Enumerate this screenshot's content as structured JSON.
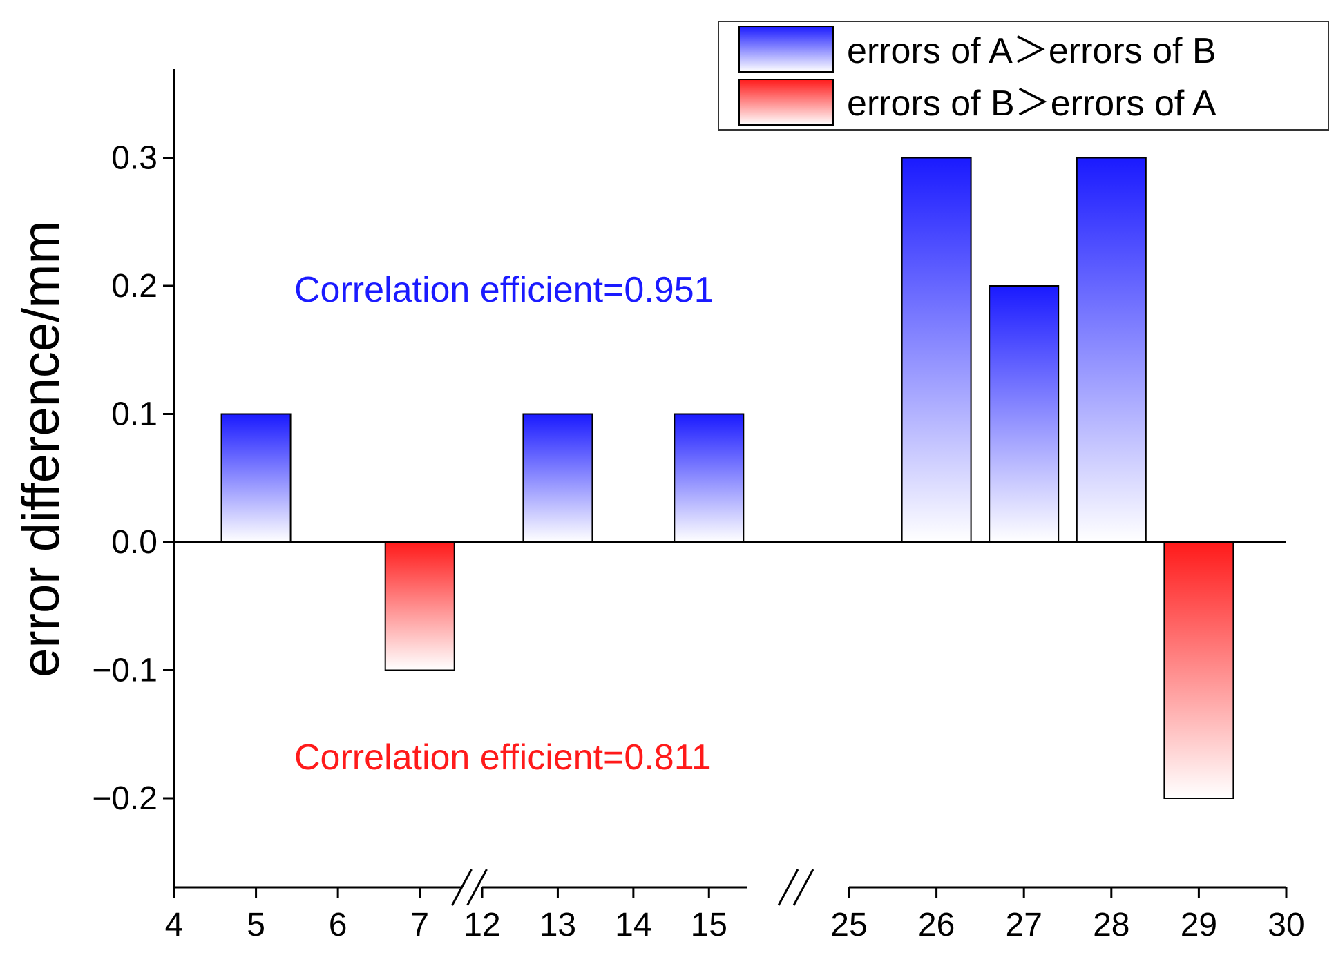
{
  "chart_data": {
    "type": "bar",
    "title": "",
    "xlabel": "",
    "ylabel": "error difference/mm",
    "ylim": [
      -0.27,
      0.37
    ],
    "yticks": [
      -0.2,
      -0.1,
      0.0,
      0.1,
      0.2,
      0.3
    ],
    "ytick_labels": [
      "−0.2",
      "−0.1",
      "0.0",
      "0.1",
      "0.2",
      "0.3"
    ],
    "x_axis": {
      "type": "broken",
      "segments": [
        {
          "range": [
            4,
            7.5
          ],
          "ticks": [
            4,
            5,
            6,
            7
          ],
          "tick_labels": [
            "4",
            "5",
            "6",
            "7"
          ]
        },
        {
          "range": [
            12,
            15.5
          ],
          "ticks": [
            12,
            13,
            14,
            15
          ],
          "tick_labels": [
            "12",
            "13",
            "14",
            "15"
          ]
        },
        {
          "range": [
            25,
            30
          ],
          "ticks": [
            25,
            26,
            27,
            28,
            29,
            30
          ],
          "tick_labels": [
            "25",
            "26",
            "27",
            "28",
            "29",
            "30"
          ]
        }
      ]
    },
    "series": [
      {
        "name": "errors of A＞errors of B",
        "color": "#1a1aff",
        "points": [
          {
            "x": 5,
            "value": 0.1
          },
          {
            "x": 13,
            "value": 0.1
          },
          {
            "x": 15,
            "value": 0.1
          },
          {
            "x": 26,
            "value": 0.3
          },
          {
            "x": 27,
            "value": 0.2
          },
          {
            "x": 28,
            "value": 0.3
          }
        ]
      },
      {
        "name": "errors of B＞errors of A",
        "color": "#ff1a1a",
        "points": [
          {
            "x": 7,
            "value": -0.1
          },
          {
            "x": 29,
            "value": -0.2
          }
        ]
      }
    ],
    "legend_position": "top-right",
    "annotations": [
      {
        "text": "Correlation efficient=0.951",
        "color": "#1a1aff"
      },
      {
        "text": "Correlation efficient=0.811",
        "color": "#ff1a1a"
      }
    ]
  }
}
